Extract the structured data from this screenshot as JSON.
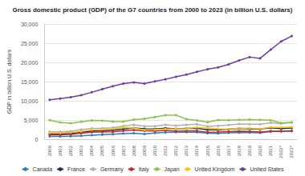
{
  "chart_data": {
    "type": "line",
    "title": "Gross domestic product (GDP) of the G7 countries from 2000 to 2023 (in billion U.S. dollars)",
    "y_label": "GDP in billion U.S. dollars",
    "categories": [
      "2000",
      "2001",
      "2002",
      "2003",
      "2004",
      "2005",
      "2006",
      "2007",
      "2008",
      "2009",
      "2010",
      "2011",
      "2012",
      "2013",
      "2014",
      "2015",
      "2016",
      "2017",
      "2018",
      "2019",
      "2020",
      "2021",
      "2022*",
      "2023*"
    ],
    "series": [
      {
        "name": "Canada",
        "color": "#2f78c4",
        "values": [
          744,
          738,
          760,
          896,
          1026,
          1173,
          1319,
          1469,
          1553,
          1376,
          1617,
          1793,
          1828,
          1847,
          1805,
          1557,
          1528,
          1649,
          1725,
          1744,
          1645,
          2002,
          2140,
          2090
        ]
      },
      {
        "name": "France",
        "color": "#1d2f4d",
        "values": [
          1362,
          1376,
          1495,
          1847,
          2120,
          2197,
          2320,
          2657,
          2918,
          2690,
          2643,
          2863,
          2684,
          2811,
          2856,
          2439,
          2472,
          2595,
          2790,
          2729,
          2630,
          2958,
          2783,
          2924
        ]
      },
      {
        "name": "Germany",
        "color": "#b0b0b0",
        "values": [
          1948,
          1945,
          2079,
          2505,
          2815,
          2846,
          2992,
          3421,
          3730,
          3398,
          3397,
          3744,
          3527,
          3733,
          3890,
          3357,
          3469,
          3690,
          3975,
          3889,
          3887,
          4260,
          4075,
          4309
        ]
      },
      {
        "name": "Italy",
        "color": "#c62828",
        "values": [
          1143,
          1168,
          1270,
          1577,
          1806,
          1857,
          1947,
          2211,
          2408,
          2199,
          2136,
          2294,
          2087,
          2141,
          2162,
          1836,
          1877,
          1961,
          2092,
          2011,
          1897,
          2108,
          2012,
          2170
        ]
      },
      {
        "name": "Japan",
        "color": "#8bc34a",
        "values": [
          4968,
          4374,
          4182,
          4519,
          4893,
          4831,
          4601,
          4579,
          5106,
          5289,
          5759,
          6233,
          6272,
          5212,
          4897,
          4445,
          5003,
          4930,
          5037,
          5123,
          5040,
          4941,
          4234,
          4410
        ]
      },
      {
        "name": "United Kingdom",
        "color": "#f5c518",
        "values": [
          1658,
          1641,
          1773,
          2055,
          2422,
          2540,
          2708,
          3090,
          2923,
          2412,
          2475,
          2659,
          2705,
          2786,
          3065,
          2928,
          2694,
          2666,
          2861,
          2851,
          2697,
          3131,
          3071,
          3159
        ]
      },
      {
        "name": "United States",
        "color": "#6b3fa0",
        "values": [
          10252,
          10582,
          10929,
          11456,
          12217,
          13039,
          13816,
          14474,
          14770,
          14478,
          15049,
          15600,
          16254,
          16843,
          17551,
          18206,
          18695,
          19477,
          20533,
          21381,
          21060,
          23315,
          25464,
          26855
        ]
      }
    ],
    "ylim": [
      0,
      30000
    ],
    "yticks": [
      0,
      {
        "value": 5000,
        "label": "5,000"
      },
      {
        "value": 10000,
        "label": "10,000"
      },
      {
        "value": 15000,
        "label": "15,000"
      },
      {
        "value": 20000,
        "label": "20,000"
      },
      {
        "value": 25000,
        "label": "25,000"
      },
      {
        "value": 30000,
        "label": "30,000"
      }
    ],
    "grid": true,
    "legend": "bottom",
    "marker": "circle"
  }
}
